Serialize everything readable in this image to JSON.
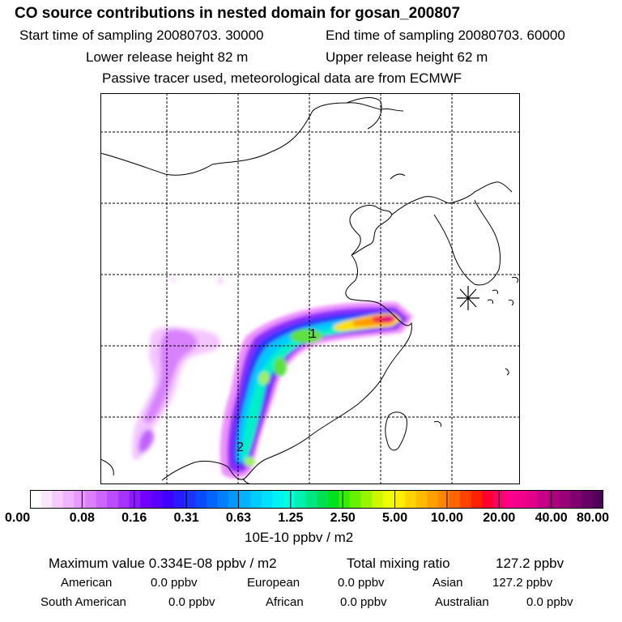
{
  "header": {
    "title": "CO  source contributions in nested domain for gosan_200807",
    "start_time": "Start time of sampling 20080703. 30000",
    "end_time": "End time of sampling 20080703. 60000",
    "lower_release": "Lower release height   82 m",
    "upper_release": "Upper release height   62 m",
    "tracer_note": "Passive tracer used, meteorological data are from ECMWF"
  },
  "map": {
    "plume_labels": [
      "1",
      "2"
    ],
    "receptor_marker": "gosan-receptor-star"
  },
  "colorbar": {
    "tick_labels": [
      "0.00",
      "0.08",
      "0.16",
      "0.31",
      "0.63",
      "1.25",
      "2.50",
      "5.00",
      "10.00",
      "20.00",
      "40.00",
      "80.00"
    ],
    "units": "10E-10 ppbv / m2",
    "colors": [
      "#ffffff",
      "#fbe6ff",
      "#f5ccff",
      "#efb3ff",
      "#e699ff",
      "#dc80ff",
      "#cc66ff",
      "#bb4dff",
      "#a633ff",
      "#8c1aff",
      "#7000ff",
      "#5a00ff",
      "#4000ff",
      "#2a1aff",
      "#1a33ff",
      "#0a4dff",
      "#0066ff",
      "#0080ff",
      "#0099ff",
      "#00b3ff",
      "#00ccff",
      "#00e0ff",
      "#00f2f2",
      "#00ffe0",
      "#00f0b0",
      "#00e680",
      "#00e050",
      "#00e020",
      "#33ee00",
      "#66f200",
      "#99f600",
      "#ccf900",
      "#eeff00",
      "#ffee00",
      "#ffd400",
      "#ffbb00",
      "#ffa000",
      "#ff8800",
      "#ff6600",
      "#ff4400",
      "#ff2200",
      "#ff0030",
      "#ff0066",
      "#ff0088",
      "#f2008c",
      "#e0008a",
      "#c80088",
      "#b00080",
      "#980078",
      "#800070",
      "#680066",
      "#50005a"
    ]
  },
  "stats": {
    "max_value": "Maximum value  0.334E-08 ppbv / m2",
    "total_label": "Total mixing ratio",
    "total_value": "127.2 ppbv",
    "american_label": "American",
    "american_value": "0.0 ppbv",
    "european_label": "European",
    "european_value": "0.0 ppbv",
    "asian_label": "Asian",
    "asian_value": "127.2 ppbv",
    "south_american_label": "South American",
    "south_american_value": "0.0 ppbv",
    "african_label": "African",
    "african_value": "0.0 ppbv",
    "australian_label": "Australian",
    "australian_value": "0.0 ppbv"
  }
}
